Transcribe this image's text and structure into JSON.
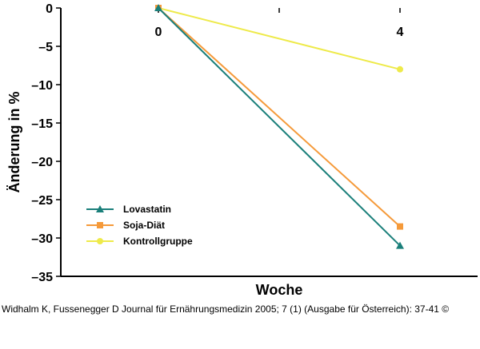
{
  "chart_data": {
    "type": "line",
    "xlabel": "Woche",
    "ylabel": "Änderung in %",
    "x": [
      0,
      4
    ],
    "x_tick_labels": [
      "0",
      "4"
    ],
    "ylim": [
      -35,
      0
    ],
    "y_ticks": [
      0,
      -5,
      -10,
      -15,
      -20,
      -25,
      -30,
      -35
    ],
    "y_tick_labels": [
      "0",
      "–5",
      "–10",
      "–15",
      "–20",
      "–25",
      "–30",
      "–35"
    ],
    "grid": false,
    "legend_position": "lower-left",
    "series": [
      {
        "name": "Lovastatin",
        "values": [
          0,
          -31
        ],
        "color": "#1a7f7a",
        "marker": "triangle"
      },
      {
        "name": "Soja-Diät",
        "values": [
          0,
          -28.5
        ],
        "color": "#f59a3a",
        "marker": "square"
      },
      {
        "name": "Kontrollgruppe",
        "values": [
          0,
          -8
        ],
        "color": "#eeea4a",
        "marker": "circle"
      }
    ]
  },
  "citation": "Widhalm K, Fussenegger D Journal für Ernährungsmedizin 2005; 7 (1) (Ausgabe für Österreich): 37-41 ©"
}
